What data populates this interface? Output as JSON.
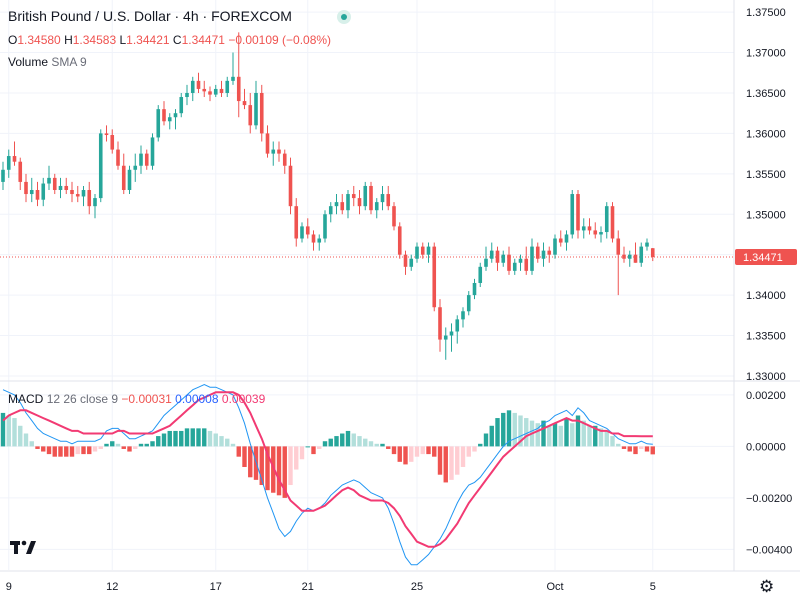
{
  "header": {
    "title": "British Pound / U.S. Dollar · 4h · FOREXCOM",
    "ohlc": {
      "o_label": "O",
      "o": "1.34580",
      "h_label": "H",
      "h": "1.34583",
      "l_label": "L",
      "l": "1.34421",
      "c_label": "C",
      "c": "1.34471",
      "change": "−0.00109 (−0.08%)"
    },
    "volume_label": "Volume",
    "volume_sma": "SMA 9"
  },
  "macd_legend": {
    "name": "MACD",
    "params": "12 26 close 9",
    "histogram": "−0.00031",
    "macd": "0.00008",
    "signal": "0.00039"
  },
  "price_tag": "1.34471",
  "colors": {
    "up": "#26a69a",
    "down": "#ef5350",
    "macd_line": "#2196f3",
    "signal_line": "#f23a73",
    "hist_up_strong": "#26a69a",
    "hist_up_weak": "#b2dfdb",
    "hist_down_strong": "#ef5350",
    "hist_down_weak": "#ffcdd2",
    "price_line": "#ef5350"
  },
  "icons": {
    "logo": "tradingview-logo-icon",
    "settings": "gear-icon",
    "status": "market-open-dot-icon"
  },
  "logo_text": "17",
  "chart_data": [
    {
      "type": "candlestick",
      "title": "British Pound / U.S. Dollar · 4h · FOREXCOM",
      "ylim": [
        1.3295,
        1.3765
      ],
      "yticks": [
        "1.37500",
        "1.37000",
        "1.36500",
        "1.36000",
        "1.35500",
        "1.35000",
        "1.34500",
        "1.34000",
        "1.33500",
        "1.33000"
      ],
      "yticks_values": [
        1.375,
        1.37,
        1.365,
        1.36,
        1.355,
        1.35,
        1.345,
        1.34,
        1.335,
        1.33
      ],
      "xticks": [
        "9",
        "12",
        "17",
        "21",
        "25",
        "Oct",
        "5"
      ],
      "xticks_index": [
        1,
        19,
        37,
        53,
        72,
        96,
        113
      ],
      "grid": true,
      "last_price": 1.34471,
      "candles": [
        [
          1.354,
          1.3565,
          1.353,
          1.3555
        ],
        [
          1.3555,
          1.358,
          1.3545,
          1.3572
        ],
        [
          1.3572,
          1.359,
          1.356,
          1.3565
        ],
        [
          1.3565,
          1.357,
          1.353,
          1.354
        ],
        [
          1.354,
          1.355,
          1.3515,
          1.3525
        ],
        [
          1.3525,
          1.3545,
          1.3515,
          1.353
        ],
        [
          1.353,
          1.354,
          1.351,
          1.3518
        ],
        [
          1.3518,
          1.3545,
          1.351,
          1.3538
        ],
        [
          1.3538,
          1.356,
          1.353,
          1.3545
        ],
        [
          1.3545,
          1.355,
          1.3525,
          1.353
        ],
        [
          1.353,
          1.3545,
          1.352,
          1.3535
        ],
        [
          1.3535,
          1.3545,
          1.3525,
          1.353
        ],
        [
          1.353,
          1.354,
          1.3515,
          1.3525
        ],
        [
          1.3525,
          1.3535,
          1.3515,
          1.3522
        ],
        [
          1.3522,
          1.3535,
          1.351,
          1.353
        ],
        [
          1.353,
          1.354,
          1.35,
          1.351
        ],
        [
          1.351,
          1.3525,
          1.3495,
          1.352
        ],
        [
          1.352,
          1.3605,
          1.3515,
          1.36
        ],
        [
          1.36,
          1.361,
          1.359,
          1.3598
        ],
        [
          1.3598,
          1.3605,
          1.3575,
          1.358
        ],
        [
          1.358,
          1.359,
          1.3555,
          1.356
        ],
        [
          1.356,
          1.3575,
          1.3525,
          1.353
        ],
        [
          1.353,
          1.356,
          1.3525,
          1.3555
        ],
        [
          1.3555,
          1.3575,
          1.354,
          1.356
        ],
        [
          1.356,
          1.3585,
          1.355,
          1.3575
        ],
        [
          1.3575,
          1.358,
          1.3555,
          1.356
        ],
        [
          1.356,
          1.36,
          1.3555,
          1.3595
        ],
        [
          1.3595,
          1.3635,
          1.359,
          1.363
        ],
        [
          1.363,
          1.364,
          1.361,
          1.3615
        ],
        [
          1.3615,
          1.3625,
          1.3605,
          1.362
        ],
        [
          1.362,
          1.363,
          1.3605,
          1.3625
        ],
        [
          1.3625,
          1.365,
          1.362,
          1.3645
        ],
        [
          1.3645,
          1.366,
          1.3635,
          1.365
        ],
        [
          1.365,
          1.367,
          1.364,
          1.3665
        ],
        [
          1.3665,
          1.3675,
          1.365,
          1.3655
        ],
        [
          1.3655,
          1.3665,
          1.3645,
          1.3652
        ],
        [
          1.3652,
          1.3658,
          1.364,
          1.3648
        ],
        [
          1.3648,
          1.366,
          1.3645,
          1.3655
        ],
        [
          1.3655,
          1.3665,
          1.3645,
          1.365
        ],
        [
          1.365,
          1.367,
          1.3645,
          1.3665
        ],
        [
          1.3665,
          1.37,
          1.366,
          1.367
        ],
        [
          1.367,
          1.3725,
          1.362,
          1.364
        ],
        [
          1.364,
          1.3655,
          1.363,
          1.3635
        ],
        [
          1.3635,
          1.365,
          1.36,
          1.361
        ],
        [
          1.361,
          1.3665,
          1.3605,
          1.365
        ],
        [
          1.365,
          1.366,
          1.359,
          1.36
        ],
        [
          1.36,
          1.361,
          1.357,
          1.3575
        ],
        [
          1.3575,
          1.359,
          1.356,
          1.358
        ],
        [
          1.358,
          1.359,
          1.3565,
          1.3575
        ],
        [
          1.3575,
          1.358,
          1.355,
          1.356
        ],
        [
          1.356,
          1.357,
          1.35,
          1.351
        ],
        [
          1.351,
          1.352,
          1.346,
          1.347
        ],
        [
          1.347,
          1.349,
          1.3465,
          1.3485
        ],
        [
          1.3485,
          1.3495,
          1.347,
          1.3475
        ],
        [
          1.3475,
          1.348,
          1.3455,
          1.3465
        ],
        [
          1.3465,
          1.3475,
          1.3455,
          1.347
        ],
        [
          1.347,
          1.3505,
          1.3465,
          1.35
        ],
        [
          1.35,
          1.3515,
          1.349,
          1.351
        ],
        [
          1.351,
          1.3525,
          1.35,
          1.3515
        ],
        [
          1.3515,
          1.3525,
          1.35,
          1.3505
        ],
        [
          1.3505,
          1.353,
          1.3495,
          1.3525
        ],
        [
          1.3525,
          1.3535,
          1.351,
          1.352
        ],
        [
          1.352,
          1.353,
          1.35,
          1.351
        ],
        [
          1.351,
          1.354,
          1.3505,
          1.3535
        ],
        [
          1.3535,
          1.354,
          1.35,
          1.3505
        ],
        [
          1.3505,
          1.352,
          1.3495,
          1.3515
        ],
        [
          1.3515,
          1.3535,
          1.3505,
          1.3525
        ],
        [
          1.3525,
          1.3535,
          1.3505,
          1.351
        ],
        [
          1.351,
          1.3515,
          1.348,
          1.3485
        ],
        [
          1.3485,
          1.349,
          1.3445,
          1.345
        ],
        [
          1.345,
          1.3455,
          1.3425,
          1.3435
        ],
        [
          1.3435,
          1.345,
          1.343,
          1.3445
        ],
        [
          1.3445,
          1.3465,
          1.344,
          1.346
        ],
        [
          1.346,
          1.3465,
          1.3445,
          1.345
        ],
        [
          1.345,
          1.3465,
          1.344,
          1.346
        ],
        [
          1.346,
          1.3465,
          1.338,
          1.3385
        ],
        [
          1.3385,
          1.3395,
          1.333,
          1.3345
        ],
        [
          1.3345,
          1.336,
          1.332,
          1.335
        ],
        [
          1.335,
          1.3365,
          1.333,
          1.3355
        ],
        [
          1.3355,
          1.3375,
          1.334,
          1.337
        ],
        [
          1.337,
          1.3385,
          1.336,
          1.338
        ],
        [
          1.338,
          1.3405,
          1.3375,
          1.34
        ],
        [
          1.34,
          1.342,
          1.3395,
          1.3415
        ],
        [
          1.3415,
          1.344,
          1.341,
          1.3435
        ],
        [
          1.3435,
          1.346,
          1.343,
          1.3445
        ],
        [
          1.3445,
          1.3465,
          1.344,
          1.3455
        ],
        [
          1.3455,
          1.346,
          1.343,
          1.344
        ],
        [
          1.344,
          1.3455,
          1.3435,
          1.345
        ],
        [
          1.345,
          1.346,
          1.3425,
          1.343
        ],
        [
          1.343,
          1.3445,
          1.3425,
          1.344
        ],
        [
          1.344,
          1.345,
          1.343,
          1.3445
        ],
        [
          1.3445,
          1.346,
          1.3425,
          1.343
        ],
        [
          1.343,
          1.347,
          1.3425,
          1.346
        ],
        [
          1.346,
          1.3465,
          1.344,
          1.3445
        ],
        [
          1.3445,
          1.3465,
          1.3435,
          1.3455
        ],
        [
          1.3455,
          1.346,
          1.344,
          1.345
        ],
        [
          1.345,
          1.3475,
          1.3445,
          1.347
        ],
        [
          1.347,
          1.348,
          1.346,
          1.3465
        ],
        [
          1.3465,
          1.348,
          1.3455,
          1.3475
        ],
        [
          1.3475,
          1.353,
          1.347,
          1.3525
        ],
        [
          1.3525,
          1.353,
          1.347,
          1.348
        ],
        [
          1.348,
          1.3495,
          1.347,
          1.3485
        ],
        [
          1.3485,
          1.3495,
          1.3475,
          1.348
        ],
        [
          1.348,
          1.349,
          1.347,
          1.3475
        ],
        [
          1.3475,
          1.3485,
          1.3465,
          1.3478
        ],
        [
          1.3478,
          1.3515,
          1.347,
          1.351
        ],
        [
          1.351,
          1.3515,
          1.3465,
          1.347
        ],
        [
          1.347,
          1.348,
          1.34,
          1.345
        ],
        [
          1.345,
          1.346,
          1.344,
          1.3445
        ],
        [
          1.3445,
          1.3455,
          1.3435,
          1.345
        ],
        [
          1.345,
          1.3465,
          1.344,
          1.344
        ],
        [
          1.344,
          1.3465,
          1.3435,
          1.346
        ],
        [
          1.346,
          1.347,
          1.3455,
          1.3465
        ],
        [
          1.3458,
          1.34583,
          1.34421,
          1.34471
        ]
      ]
    },
    {
      "type": "macd",
      "title": "MACD 12 26 close 9",
      "ylim": [
        -0.0048,
        0.0025
      ],
      "yticks": [
        "0.00200",
        "0.00000",
        "−0.00200",
        "−0.00400"
      ],
      "yticks_values": [
        0.002,
        0,
        -0.002,
        -0.004
      ],
      "histogram": [
        0.0013,
        0.0012,
        0.0011,
        0.0008,
        0.0005,
        0.0002,
        -0.0001,
        -0.0002,
        -0.0003,
        -0.0004,
        -0.0004,
        -0.0004,
        -0.0004,
        -0.0003,
        -0.0003,
        -0.0003,
        -0.0002,
        -0.0001,
        0.0001,
        0.0002,
        0.0001,
        -0.0001,
        -0.0002,
        -0.0001,
        0.0001,
        0.0001,
        0.0002,
        0.0004,
        0.0005,
        0.0006,
        0.0006,
        0.0006,
        0.0007,
        0.0007,
        0.0007,
        0.0007,
        0.0006,
        0.0005,
        0.0004,
        0.0003,
        0.0001,
        -0.0004,
        -0.0008,
        -0.0012,
        -0.0013,
        -0.0015,
        -0.0017,
        -0.0018,
        -0.0019,
        -0.002,
        -0.0015,
        -0.0009,
        -0.0005,
        0.0,
        -0.0003,
        -0.0001,
        0.0002,
        0.0003,
        0.0004,
        0.0005,
        0.0006,
        0.0005,
        0.0004,
        0.0003,
        0.0002,
        0.0001,
        0.0001,
        -0.0001,
        -0.0003,
        -0.0006,
        -0.0007,
        -0.0006,
        -0.0004,
        -0.0003,
        -0.0003,
        -0.0004,
        -0.0011,
        -0.0014,
        -0.0013,
        -0.0011,
        -0.0008,
        -0.0004,
        -0.0002,
        0.0001,
        0.0005,
        0.0008,
        0.0011,
        0.0013,
        0.0014,
        0.0013,
        0.0012,
        0.0011,
        0.001,
        0.0009,
        0.001,
        0.0008,
        0.0009,
        0.0008,
        0.0011,
        0.0009,
        0.0012,
        0.001,
        0.0008,
        0.0008,
        0.0007,
        0.0006,
        0.0004,
        0.0001,
        -0.0001,
        -0.0002,
        -0.0003,
        -0.0001,
        -0.0002,
        -0.00031
      ],
      "macd": [
        0.0022,
        0.0021,
        0.002,
        0.0017,
        0.0013,
        0.001,
        0.0007,
        0.0005,
        0.0004,
        0.0003,
        0.0002,
        0.0002,
        0.0001,
        0.0002,
        0.0002,
        0.0002,
        0.0002,
        0.0003,
        0.0006,
        0.0007,
        0.0007,
        0.0005,
        0.0003,
        0.0003,
        0.0004,
        0.0005,
        0.0006,
        0.0009,
        0.0012,
        0.0014,
        0.0016,
        0.0018,
        0.002,
        0.0022,
        0.0023,
        0.0024,
        0.0023,
        0.0023,
        0.0022,
        0.0021,
        0.002,
        0.0015,
        0.0009,
        0.0001,
        -0.0006,
        -0.0013,
        -0.002,
        -0.0026,
        -0.0032,
        -0.0035,
        -0.0033,
        -0.0029,
        -0.0026,
        -0.0024,
        -0.0025,
        -0.0024,
        -0.0022,
        -0.0019,
        -0.0017,
        -0.0015,
        -0.0014,
        -0.0013,
        -0.0014,
        -0.0016,
        -0.0018,
        -0.0019,
        -0.002,
        -0.0024,
        -0.003,
        -0.0037,
        -0.0043,
        -0.0046,
        -0.0046,
        -0.0044,
        -0.0042,
        -0.0039,
        -0.0036,
        -0.0032,
        -0.0027,
        -0.0022,
        -0.0018,
        -0.0015,
        -0.0014,
        -0.0012,
        -0.0009,
        -0.0006,
        -0.0003,
        0.0,
        0.0002,
        0.0003,
        0.0004,
        0.0005,
        0.0006,
        0.0007,
        0.0009,
        0.001,
        0.0012,
        0.0013,
        0.0014,
        0.0012,
        0.0015,
        0.0013,
        0.001,
        0.0009,
        0.0008,
        0.0007,
        0.0005,
        0.0003,
        0.0002,
        0.0001,
        0.0001,
        0.0002,
        0.0001,
        8e-05
      ],
      "signal": [
        0.001,
        0.0012,
        0.0013,
        0.0014,
        0.0014,
        0.0013,
        0.0012,
        0.0011,
        0.001,
        0.0009,
        0.0008,
        0.0007,
        0.0006,
        0.0006,
        0.0005,
        0.0005,
        0.0005,
        0.0005,
        0.0005,
        0.0005,
        0.0006,
        0.0006,
        0.0005,
        0.0005,
        0.0005,
        0.0005,
        0.0005,
        0.0006,
        0.0007,
        0.0008,
        0.001,
        0.0012,
        0.0014,
        0.0016,
        0.0018,
        0.0019,
        0.002,
        0.0021,
        0.0021,
        0.0021,
        0.0021,
        0.002,
        0.0017,
        0.0013,
        0.0008,
        0.0003,
        -0.0003,
        -0.0008,
        -0.0013,
        -0.0017,
        -0.0021,
        -0.0023,
        -0.0025,
        -0.0025,
        -0.0025,
        -0.0024,
        -0.0023,
        -0.0021,
        -0.0019,
        -0.0017,
        -0.0016,
        -0.0017,
        -0.0019,
        -0.002,
        -0.0021,
        -0.0021,
        -0.0021,
        -0.0022,
        -0.0024,
        -0.0027,
        -0.0031,
        -0.0034,
        -0.0037,
        -0.0038,
        -0.0039,
        -0.0039,
        -0.0038,
        -0.0036,
        -0.0033,
        -0.003,
        -0.0026,
        -0.0022,
        -0.0019,
        -0.0016,
        -0.0013,
        -0.001,
        -0.0007,
        -0.0004,
        -0.0002,
        0.0,
        0.0002,
        0.0004,
        0.0005,
        0.0006,
        0.0007,
        0.0008,
        0.0009,
        0.001,
        0.0011,
        0.001,
        0.001,
        0.0009,
        0.0008,
        0.0007,
        0.0006,
        0.0006,
        0.0005,
        0.0005,
        0.0004,
        0.0004,
        0.0004,
        0.00039,
        0.00039,
        0.00039
      ]
    }
  ]
}
